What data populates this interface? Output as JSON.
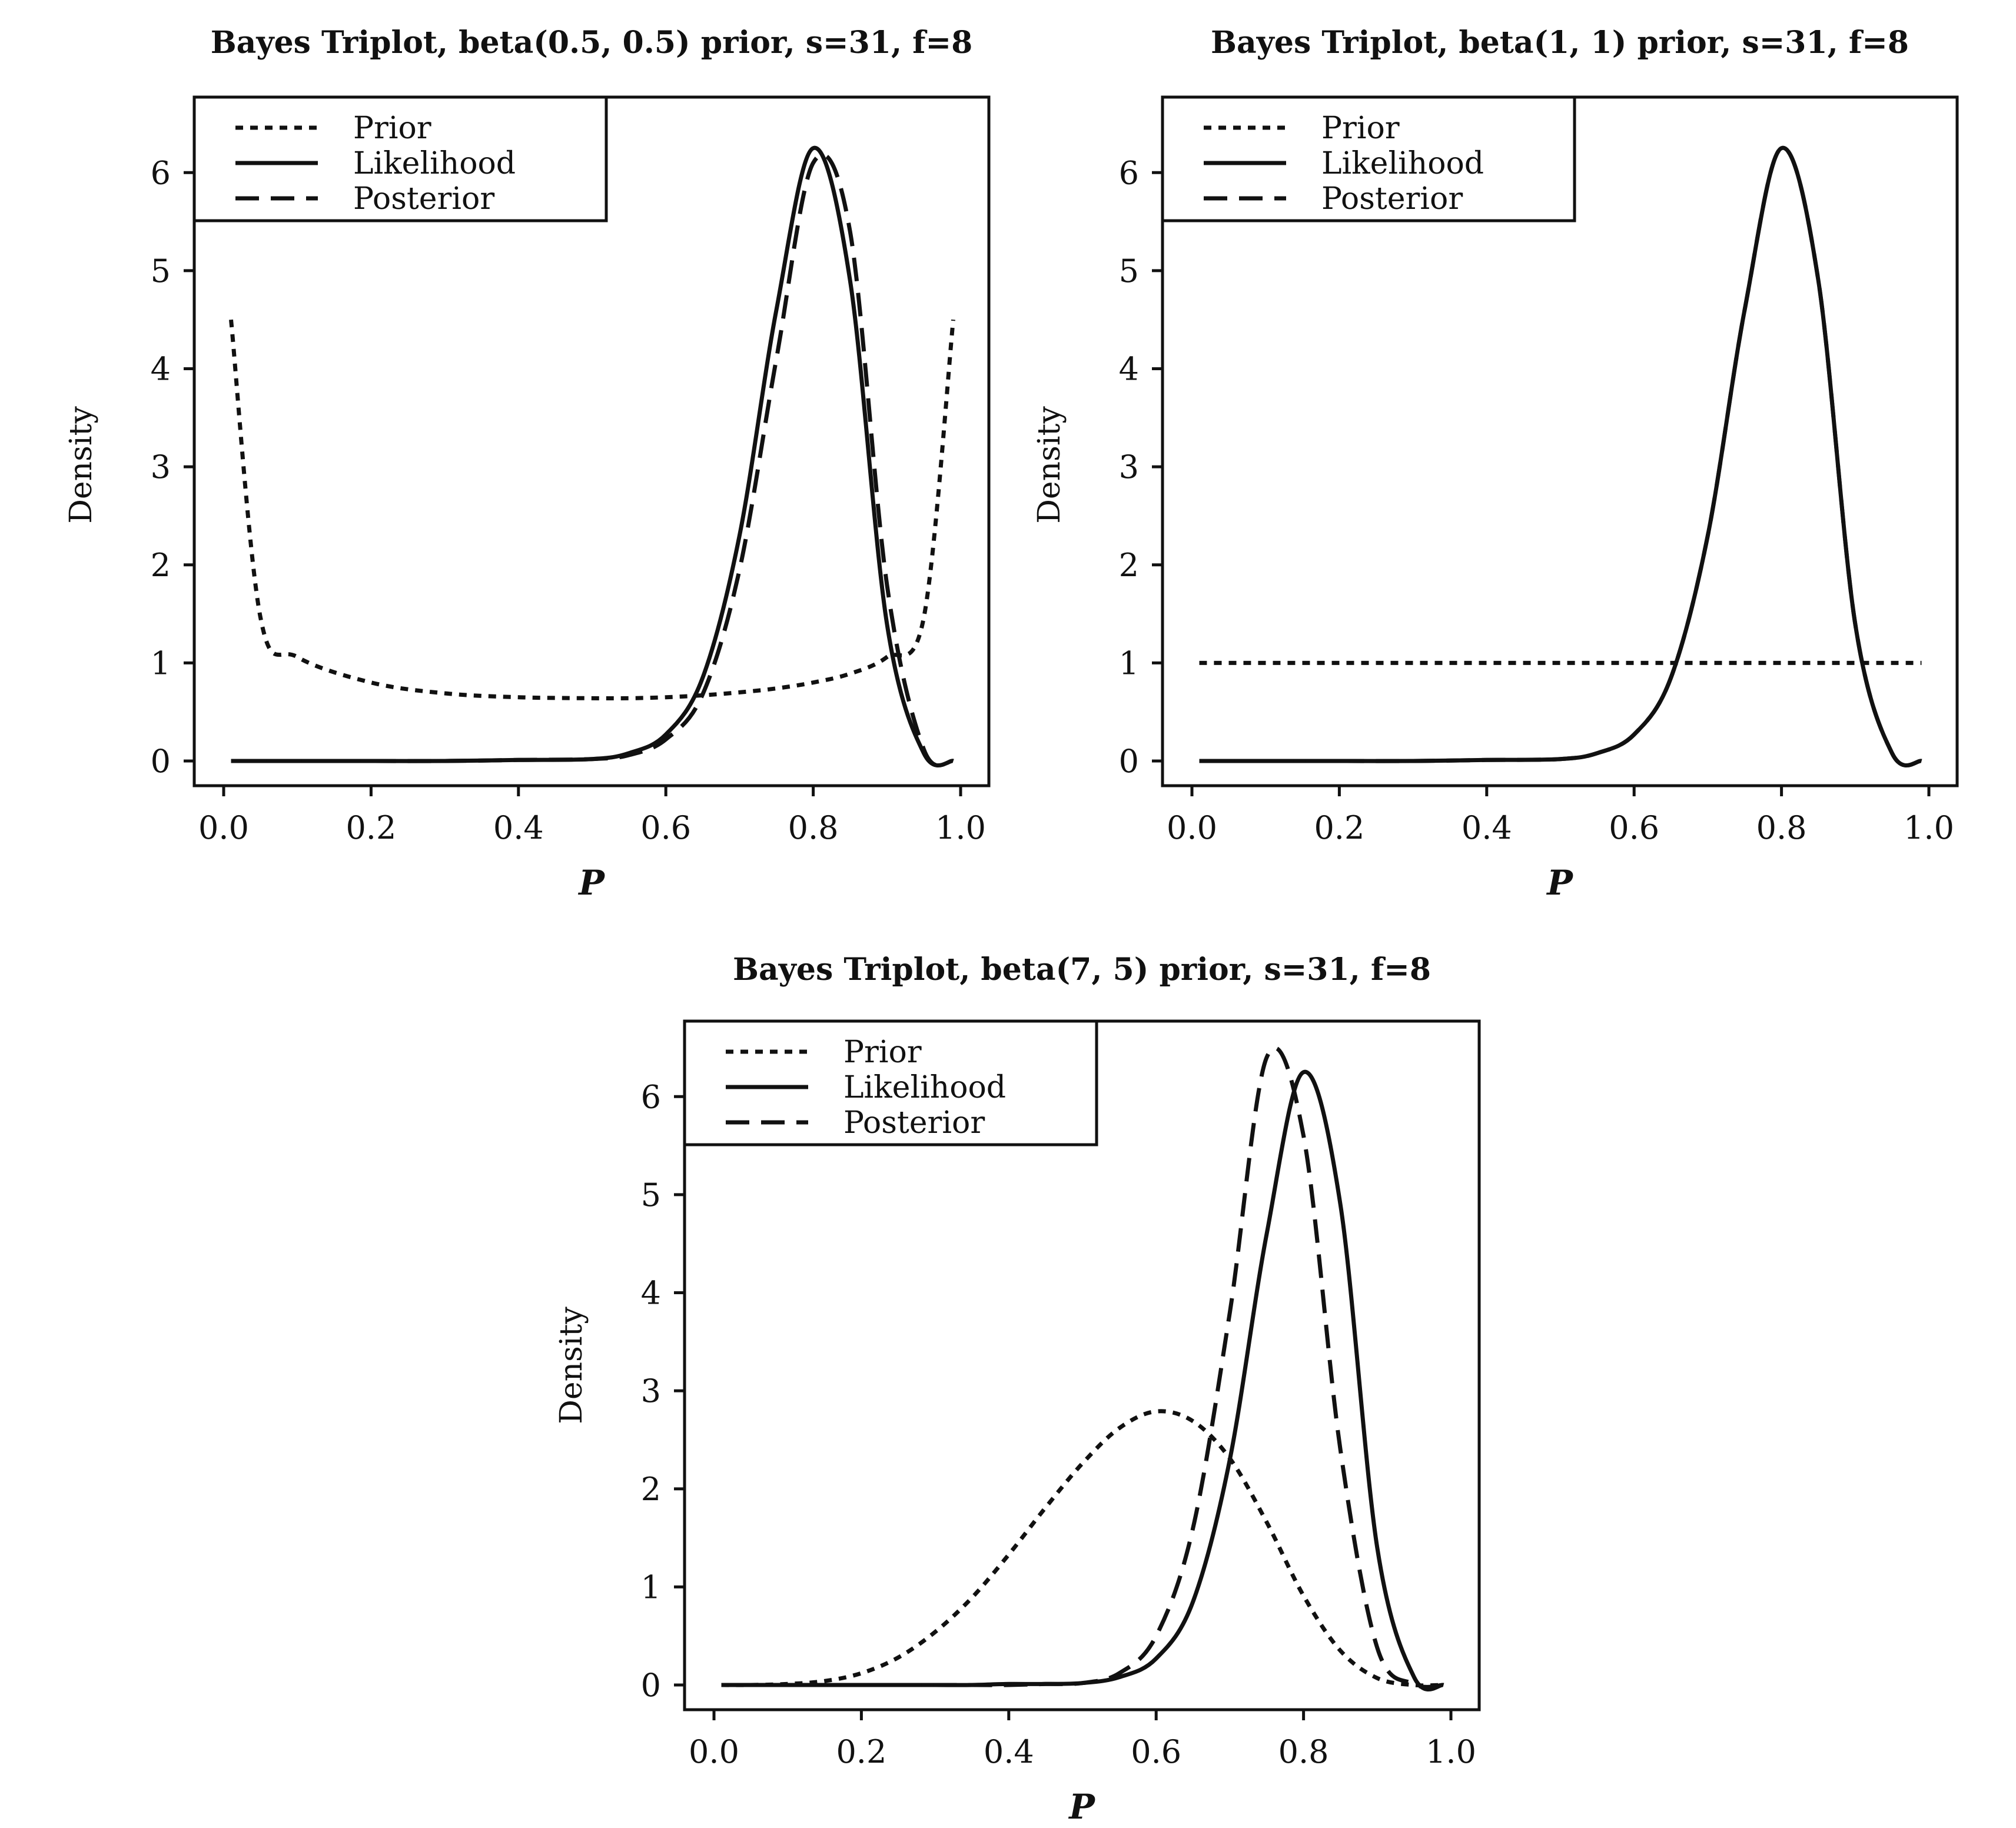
{
  "chart_data": [
    {
      "type": "line",
      "title": "Bayes Triplot, beta(0.5, 0.5) prior, s=31, f=8",
      "xlabel": "P",
      "ylabel": "Density",
      "xlim": [
        0.0,
        1.0
      ],
      "ylim": [
        0,
        6.5
      ],
      "xticks": [
        "0.0",
        "0.2",
        "0.4",
        "0.6",
        "0.8",
        "1.0"
      ],
      "yticks": [
        "0",
        "1",
        "2",
        "3",
        "4",
        "5",
        "6"
      ],
      "legend_position": "top-left",
      "x": [
        0.01,
        0.05,
        0.1,
        0.2,
        0.3,
        0.4,
        0.5,
        0.55,
        0.6,
        0.65,
        0.7,
        0.75,
        0.8,
        0.85,
        0.9,
        0.95,
        0.99
      ],
      "series": [
        {
          "name": "Prior",
          "style": "dotted",
          "values": [
            4.5,
            1.46,
            1.06,
            0.8,
            0.69,
            0.65,
            0.64,
            0.64,
            0.65,
            0.67,
            0.7,
            0.74,
            0.8,
            0.89,
            1.06,
            1.46,
            4.5
          ]
        },
        {
          "name": "Likelihood",
          "style": "solid",
          "values": [
            0,
            0,
            0,
            0,
            0,
            0.01,
            0.02,
            0.08,
            0.27,
            0.85,
            2.3,
            4.6,
            6.25,
            4.9,
            1.4,
            0.08,
            0
          ]
        },
        {
          "name": "Posterior",
          "style": "dashed",
          "values": [
            0,
            0,
            0,
            0,
            0,
            0.01,
            0.02,
            0.06,
            0.22,
            0.68,
            1.95,
            4.1,
            6.1,
            5.4,
            1.8,
            0.12,
            0
          ]
        }
      ]
    },
    {
      "type": "line",
      "title": "Bayes Triplot, beta(1, 1) prior, s=31, f=8",
      "xlabel": "P",
      "ylabel": "Density",
      "xlim": [
        0.0,
        1.0
      ],
      "ylim": [
        0,
        6.5
      ],
      "xticks": [
        "0.0",
        "0.2",
        "0.4",
        "0.6",
        "0.8",
        "1.0"
      ],
      "yticks": [
        "0",
        "1",
        "2",
        "3",
        "4",
        "5",
        "6"
      ],
      "legend_position": "top-left",
      "x": [
        0.01,
        0.05,
        0.1,
        0.2,
        0.3,
        0.4,
        0.5,
        0.55,
        0.6,
        0.65,
        0.7,
        0.75,
        0.8,
        0.85,
        0.9,
        0.95,
        0.99
      ],
      "series": [
        {
          "name": "Prior",
          "style": "dotted",
          "values": [
            1,
            1,
            1,
            1,
            1,
            1,
            1,
            1,
            1,
            1,
            1,
            1,
            1,
            1,
            1,
            1,
            1
          ]
        },
        {
          "name": "Likelihood",
          "style": "solid",
          "values": [
            0,
            0,
            0,
            0,
            0,
            0.01,
            0.02,
            0.08,
            0.27,
            0.85,
            2.3,
            4.6,
            6.25,
            4.9,
            1.4,
            0.08,
            0
          ]
        },
        {
          "name": "Posterior",
          "style": "dashed",
          "values": [
            0,
            0,
            0,
            0,
            0,
            0.01,
            0.02,
            0.08,
            0.27,
            0.85,
            2.3,
            4.6,
            6.25,
            4.9,
            1.4,
            0.08,
            0
          ]
        }
      ]
    },
    {
      "type": "line",
      "title": "Bayes Triplot, beta(7, 5) prior, s=31, f=8",
      "xlabel": "P",
      "ylabel": "Density",
      "xlim": [
        0.0,
        1.0
      ],
      "ylim": [
        0,
        6.5
      ],
      "xticks": [
        "0.0",
        "0.2",
        "0.4",
        "0.6",
        "0.8",
        "1.0"
      ],
      "yticks": [
        "0",
        "1",
        "2",
        "3",
        "4",
        "5",
        "6"
      ],
      "legend_position": "top-left",
      "x": [
        0.01,
        0.05,
        0.1,
        0.15,
        0.2,
        0.25,
        0.3,
        0.35,
        0.4,
        0.45,
        0.5,
        0.55,
        0.6,
        0.65,
        0.7,
        0.75,
        0.8,
        0.85,
        0.9,
        0.95,
        0.99
      ],
      "series": [
        {
          "name": "Prior",
          "style": "dotted",
          "values": [
            0,
            0,
            0.01,
            0.04,
            0.12,
            0.28,
            0.54,
            0.89,
            1.33,
            1.81,
            2.26,
            2.62,
            2.79,
            2.69,
            2.31,
            1.66,
            0.91,
            0.35,
            0.07,
            0.0,
            0
          ]
        },
        {
          "name": "Likelihood",
          "style": "solid",
          "values": [
            0,
            0,
            0,
            0,
            0,
            0,
            0,
            0,
            0.01,
            0.01,
            0.02,
            0.08,
            0.27,
            0.85,
            2.3,
            4.6,
            6.25,
            4.9,
            1.4,
            0.08,
            0
          ]
        },
        {
          "name": "Posterior",
          "style": "dashed",
          "values": [
            0,
            0,
            0,
            0,
            0,
            0,
            0,
            0,
            0,
            0.01,
            0.02,
            0.12,
            0.5,
            1.6,
            3.8,
            6.4,
            5.6,
            2.4,
            0.38,
            0.01,
            0
          ]
        }
      ]
    }
  ]
}
